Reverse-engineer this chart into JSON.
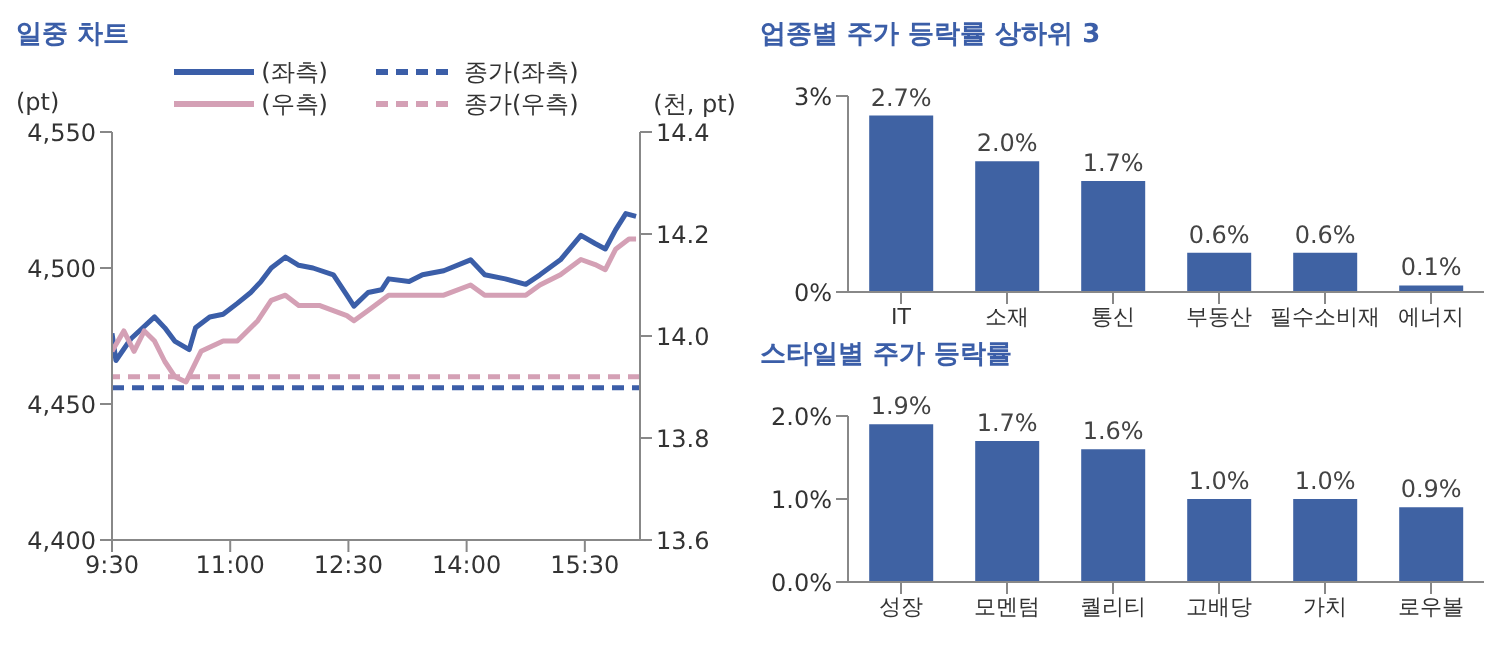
{
  "chart_data": [
    {
      "type": "line",
      "title": "일중 차트",
      "ylabel": "(pt)",
      "y2label": "(천, pt)",
      "series": [
        {
          "name": "(좌측)",
          "color": "#3b5ea8",
          "x": [
            9.5,
            9.55,
            9.74,
            10.04,
            10.17,
            10.3,
            10.48,
            10.56,
            10.74,
            10.91,
            11.09,
            11.26,
            11.39,
            11.52,
            11.7,
            11.87,
            12.05,
            12.31,
            12.48,
            12.57,
            12.75,
            12.92,
            13.01,
            13.27,
            13.44,
            13.71,
            14.05,
            14.23,
            14.49,
            14.75,
            14.93,
            15.19,
            15.45,
            15.63,
            15.76,
            15.89,
            16.02,
            16.15
          ],
          "values": [
            4476,
            4466,
            4474,
            4482,
            4478,
            4473,
            4470,
            4478,
            4482,
            4483,
            4487,
            4491,
            4495,
            4500,
            4504,
            4501,
            4500,
            4497.5,
            4490,
            4486,
            4491,
            4492,
            4496,
            4495,
            4497.5,
            4499,
            4503,
            4497.5,
            4496,
            4494,
            4497.5,
            4503,
            4512,
            4509,
            4507,
            4514,
            4520,
            4519
          ]
        },
        {
          "name": "(우측)",
          "color": "#d4a0b5",
          "axis": "y2",
          "x": [
            9.5,
            9.65,
            9.78,
            9.91,
            10.04,
            10.17,
            10.3,
            10.44,
            10.63,
            10.91,
            11.09,
            11.35,
            11.52,
            11.7,
            11.87,
            12.13,
            12.48,
            12.57,
            12.75,
            13.01,
            13.44,
            13.71,
            14.05,
            14.23,
            14.49,
            14.75,
            14.93,
            15.19,
            15.45,
            15.63,
            15.76,
            15.89,
            16.06,
            16.15
          ],
          "values": [
            13.97,
            14.01,
            13.97,
            14.01,
            13.99,
            13.95,
            13.92,
            13.91,
            13.97,
            13.99,
            13.99,
            14.03,
            14.07,
            14.08,
            14.06,
            14.06,
            14.04,
            14.03,
            14.05,
            14.08,
            14.08,
            14.08,
            14.1,
            14.08,
            14.08,
            14.08,
            14.1,
            14.12,
            14.15,
            14.14,
            14.13,
            14.17,
            14.19,
            14.19
          ]
        }
      ],
      "ref_lines": [
        {
          "axis": "y",
          "value": 4456,
          "label": "종가(좌측)",
          "color": "#3b5ea8",
          "line_style": "dashed"
        },
        {
          "axis": "y2",
          "value": 13.92,
          "label": "종가(우측)",
          "color": "#d4a0b5",
          "line_style": "dashed"
        }
      ],
      "xlim": [
        9.5,
        16.2
      ],
      "xticks": [
        {
          "value": 9.5,
          "label": "9:30"
        },
        {
          "value": 11,
          "label": "11:00"
        },
        {
          "value": 12.5,
          "label": "12:30"
        },
        {
          "value": 14,
          "label": "14:00"
        },
        {
          "value": 15.5,
          "label": "15:30"
        }
      ],
      "ylim": [
        4400,
        4550
      ],
      "yticks": [
        {
          "value": 4400,
          "label": "4,400"
        },
        {
          "value": 4450,
          "label": "4,450"
        },
        {
          "value": 4500,
          "label": "4,500"
        },
        {
          "value": 4550,
          "label": "4,550"
        }
      ],
      "y2lim": [
        13.6,
        14.4
      ],
      "y2ticks": [
        {
          "value": 13.6,
          "label": "13.6"
        },
        {
          "value": 13.8,
          "label": "13.8"
        },
        {
          "value": 14.0,
          "label": "14.0"
        },
        {
          "value": 14.2,
          "label": "14.2"
        },
        {
          "value": 14.4,
          "label": "14.4"
        }
      ],
      "legend": "top",
      "grid": false,
      "marker": "none",
      "line_style": "solid"
    },
    {
      "type": "bar",
      "title": "업종별 주가 등락률 상하위 3",
      "categories": [
        "IT",
        "소재",
        "통신",
        "부동산",
        "필수소비재",
        "에너지"
      ],
      "values": [
        2.7,
        2.0,
        1.7,
        0.6,
        0.6,
        0.1
      ],
      "value_labels": [
        "2.7%",
        "2.0%",
        "1.7%",
        "0.6%",
        "0.6%",
        "0.1%"
      ],
      "color": "#3f62a3",
      "ylim": [
        0,
        3
      ],
      "yticks": [
        {
          "value": 0,
          "label": "0%"
        },
        {
          "value": 3,
          "label": "3%"
        }
      ]
    },
    {
      "type": "bar",
      "title": "스타일별 주가 등락률",
      "categories": [
        "성장",
        "모멘텀",
        "퀄리티",
        "고배당",
        "가치",
        "로우볼"
      ],
      "values": [
        1.9,
        1.7,
        1.6,
        1.0,
        1.0,
        0.9
      ],
      "value_labels": [
        "1.9%",
        "1.7%",
        "1.6%",
        "1.0%",
        "1.0%",
        "0.9%"
      ],
      "color": "#3f62a3",
      "ylim": [
        0,
        2
      ],
      "yticks": [
        {
          "value": 0,
          "label": "0.0%"
        },
        {
          "value": 1,
          "label": "1.0%"
        },
        {
          "value": 2,
          "label": "2.0%"
        }
      ]
    }
  ]
}
